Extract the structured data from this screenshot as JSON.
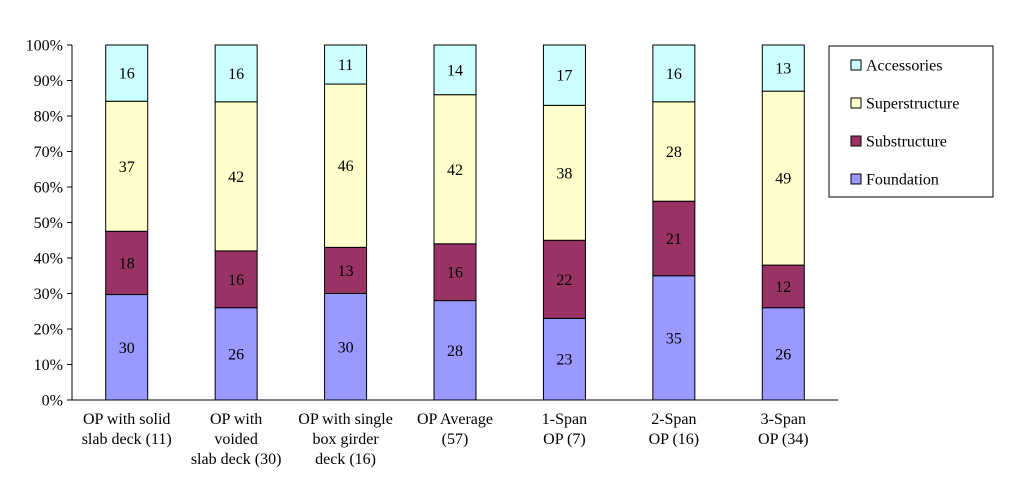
{
  "chart_data": {
    "type": "bar",
    "stacked": true,
    "percent": true,
    "title": "",
    "xlabel": "",
    "ylabel": "",
    "ylim": [
      0,
      100
    ],
    "yticks": [
      "0%",
      "10%",
      "20%",
      "30%",
      "40%",
      "50%",
      "60%",
      "70%",
      "80%",
      "90%",
      "100%"
    ],
    "categories": [
      [
        "OP with solid",
        "slab deck (11)"
      ],
      [
        "OP with",
        "voided",
        "slab deck (30)"
      ],
      [
        "OP with single",
        "box girder",
        "deck (16)"
      ],
      [
        "OP Average",
        "(57)"
      ],
      [
        "1-Span",
        "OP (7)"
      ],
      [
        "2-Span",
        "OP (16)"
      ],
      [
        "3-Span",
        "OP (34)"
      ]
    ],
    "series": [
      {
        "name": "Foundation",
        "color": "#9999ff",
        "values": [
          30,
          26,
          30,
          28,
          23,
          35,
          26
        ],
        "labels": [
          "30",
          "26",
          "30",
          "28",
          "23",
          "35",
          "26"
        ]
      },
      {
        "name": "Substructure",
        "color": "#993366",
        "values": [
          18,
          16,
          13,
          16,
          22,
          21,
          12
        ],
        "labels": [
          "18",
          "16",
          "13",
          "16",
          "22",
          "21",
          "12"
        ]
      },
      {
        "name": "Superstructure",
        "color": "#ffffcc",
        "values": [
          37,
          42,
          46,
          42,
          38,
          28,
          49
        ],
        "labels": [
          "37",
          "42",
          "46",
          "42",
          "38",
          "28",
          "49"
        ]
      },
      {
        "name": "Accessories",
        "color": "#ccffff",
        "values": [
          16,
          16,
          11,
          14,
          17,
          16,
          13
        ],
        "labels": [
          "16",
          "16",
          "11",
          "14",
          "17",
          "16",
          "13"
        ]
      }
    ],
    "legend": {
      "position": "right",
      "order": [
        "Accessories",
        "Superstructure",
        "Substructure",
        "Foundation"
      ]
    }
  }
}
